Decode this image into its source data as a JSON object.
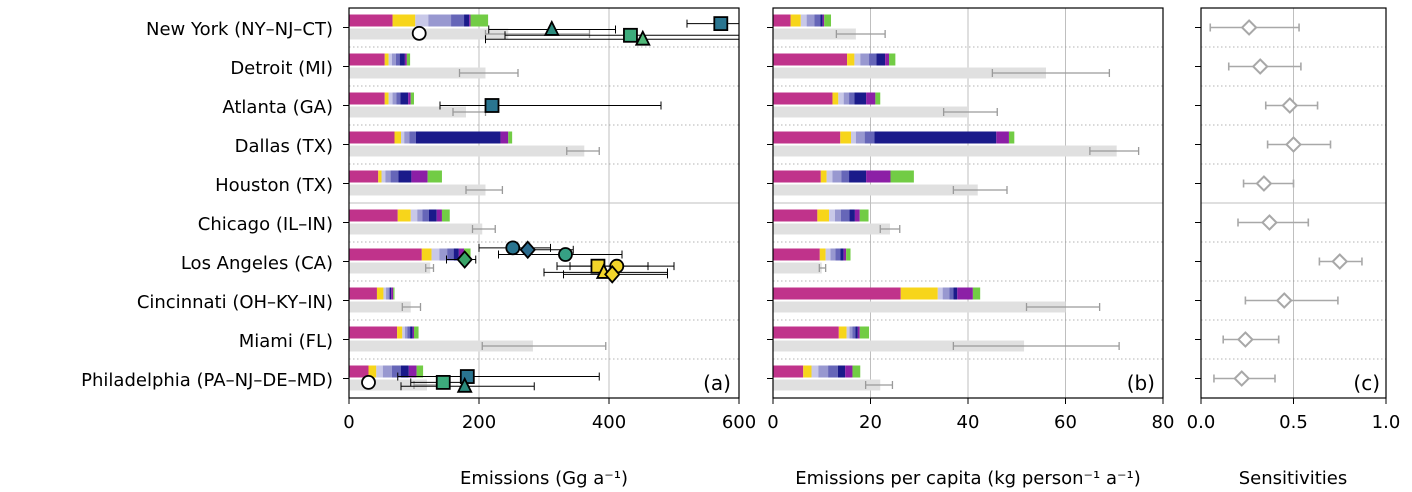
{
  "colors": {
    "sectors": [
      "#c0338b",
      "#f7d51b",
      "#c8c8e8",
      "#9898d0",
      "#6666b8",
      "#1a1a8a",
      "#8c1fa6",
      "#72cc45"
    ],
    "inventory": "#e0e0e0",
    "inventory_error": "#9a9a9a",
    "sensitivity_marker": "#a8a8a8",
    "grid": "#bfbfbf",
    "dotted_separator": "#9a9a9a"
  },
  "chart_data": [
    {
      "type": "bar",
      "panel_letter": "(a)",
      "xlabel": "Emissions (Gg a⁻¹)",
      "xlim": [
        0,
        600
      ],
      "xticks": [
        0,
        200,
        400,
        600
      ],
      "xtick_labels": [
        "0",
        "200",
        "400",
        "600"
      ],
      "categories": [
        "New York (NY–NJ–CT)",
        "Detroit (MI)",
        "Atlanta (GA)",
        "Dallas (TX)",
        "Houston (TX)",
        "Chicago (IL–IN)",
        "Los Angeles (CA)",
        "Cincinnati (OH–KY–IN)",
        "Miami (FL)",
        "Philadelphia (PA–NJ–DE–MD)"
      ],
      "stacked_sectors": [
        [
          67,
          35,
          20,
          35,
          20,
          8,
          2,
          27
        ],
        [
          55,
          6,
          5,
          6,
          6,
          8,
          3,
          5
        ],
        [
          55,
          6,
          6,
          6,
          6,
          12,
          4,
          5
        ],
        [
          70,
          10,
          5,
          8,
          10,
          130,
          12,
          6
        ],
        [
          45,
          5,
          6,
          8,
          12,
          20,
          25,
          22
        ],
        [
          75,
          20,
          10,
          8,
          10,
          12,
          8,
          12
        ],
        [
          112,
          15,
          12,
          12,
          10,
          8,
          8,
          10
        ],
        [
          43,
          10,
          4,
          4,
          2,
          2,
          3,
          2
        ],
        [
          74,
          8,
          4,
          4,
          4,
          4,
          2,
          7
        ],
        [
          30,
          12,
          10,
          14,
          14,
          12,
          12,
          10
        ]
      ],
      "inventory": [
        {
          "value": 245,
          "err": [
            210,
            370
          ]
        },
        {
          "value": 210,
          "err": [
            170,
            260
          ]
        },
        {
          "value": 180,
          "err": [
            160,
            210
          ]
        },
        {
          "value": 362,
          "err": [
            335,
            385
          ]
        },
        {
          "value": 210,
          "err": [
            180,
            236
          ]
        },
        {
          "value": 205,
          "err": [
            190,
            225
          ]
        },
        {
          "value": 125,
          "err": [
            118,
            130
          ]
        },
        {
          "value": 95,
          "err": [
            82,
            110
          ]
        },
        {
          "value": 283,
          "err": [
            205,
            395
          ]
        },
        {
          "value": 120,
          "err": [
            100,
            135
          ]
        }
      ],
      "estimates": [
        {
          "row": 0,
          "offset": -0.1,
          "marker": "square",
          "fill": "#2a7590",
          "x": 572,
          "xerr": [
            520,
            600
          ]
        },
        {
          "row": 0,
          "offset": 0.05,
          "marker": "triangle",
          "fill": "#2a8a7c",
          "x": 312,
          "xerr": [
            215,
            410
          ]
        },
        {
          "row": 0,
          "offset": 0.15,
          "marker": "circle",
          "fill": "#ffffff",
          "x": 108,
          "xerr": null
        },
        {
          "row": 0,
          "offset": 0.2,
          "marker": "square",
          "fill": "#3dab7c",
          "x": 433,
          "xerr": [
            240,
            600
          ]
        },
        {
          "row": 0,
          "offset": 0.3,
          "marker": "triangle",
          "fill": "#50b878",
          "x": 452,
          "xerr": [
            210,
            600
          ]
        },
        {
          "row": 2,
          "offset": 0,
          "marker": "square",
          "fill": "#2a7590",
          "x": 220,
          "xerr": [
            140,
            480
          ]
        },
        {
          "row": 6,
          "offset": -0.35,
          "marker": "circle",
          "fill": "#2a7590",
          "x": 252,
          "xerr": [
            200,
            310
          ]
        },
        {
          "row": 6,
          "offset": -0.3,
          "marker": "diamond",
          "fill": "#2a6a8c",
          "x": 275,
          "xerr": [
            250,
            345
          ]
        },
        {
          "row": 6,
          "offset": -0.18,
          "marker": "circle",
          "fill": "#36a084",
          "x": 333,
          "xerr": [
            230,
            420
          ]
        },
        {
          "row": 6,
          "offset": -0.05,
          "marker": "diamond",
          "fill": "#3aa468",
          "x": 178,
          "xerr": [
            150,
            195
          ]
        },
        {
          "row": 6,
          "offset": 0.12,
          "marker": "circle",
          "fill": "#f2d52a",
          "x": 412,
          "xerr": [
            340,
            500
          ]
        },
        {
          "row": 6,
          "offset": 0.12,
          "marker": "square",
          "fill": "#f2d52a",
          "x": 383,
          "xerr": [
            320,
            460
          ]
        },
        {
          "row": 6,
          "offset": 0.28,
          "marker": "triangle",
          "fill": "#f2d52a",
          "x": 392,
          "xerr": [
            300,
            490
          ]
        },
        {
          "row": 6,
          "offset": 0.33,
          "marker": "diamond",
          "fill": "#f2d52a",
          "x": 405,
          "xerr": [
            330,
            490
          ]
        },
        {
          "row": 9,
          "offset": -0.05,
          "marker": "square",
          "fill": "#2a7590",
          "x": 182,
          "xerr": [
            75,
            385
          ]
        },
        {
          "row": 9,
          "offset": 0.1,
          "marker": "circle",
          "fill": "#ffffff",
          "x": 30,
          "xerr": null
        },
        {
          "row": 9,
          "offset": 0.1,
          "marker": "square",
          "fill": "#3dab7c",
          "x": 145,
          "xerr": [
            95,
            175
          ]
        },
        {
          "row": 9,
          "offset": 0.2,
          "marker": "triangle",
          "fill": "#2a8a7c",
          "x": 178,
          "xerr": [
            80,
            285
          ]
        }
      ]
    },
    {
      "type": "bar",
      "panel_letter": "(b)",
      "xlabel": "Emissions per capita (kg person⁻¹ a⁻¹)",
      "xlim": [
        0,
        80
      ],
      "xticks": [
        0,
        20,
        40,
        60,
        80
      ],
      "xtick_labels": [
        "0",
        "20",
        "40",
        "60",
        "80"
      ],
      "stacked_sectors": [
        [
          3.6,
          2.1,
          1.2,
          1.6,
          1.2,
          0.5,
          0.3,
          1.4
        ],
        [
          15.2,
          1.5,
          1.2,
          1.8,
          1.5,
          1.8,
          0.8,
          1.3
        ],
        [
          12.2,
          1.2,
          1.1,
          1.1,
          1.1,
          2.4,
          1.9,
          1.0
        ],
        [
          13.8,
          2.2,
          1.0,
          1.8,
          2.0,
          25.0,
          2.6,
          1.1
        ],
        [
          9.8,
          1.2,
          1.2,
          1.8,
          1.6,
          3.5,
          5.0,
          4.8
        ],
        [
          9.1,
          2.4,
          1.2,
          1.2,
          1.8,
          1.1,
          1.0,
          1.8
        ],
        [
          9.6,
          1.2,
          1.0,
          1.0,
          1.0,
          0.7,
          0.5,
          0.9
        ],
        [
          26.2,
          7.6,
          1.0,
          1.4,
          0.8,
          0.8,
          3.2,
          1.5
        ],
        [
          13.5,
          1.6,
          0.6,
          0.6,
          0.6,
          0.5,
          0.4,
          1.9
        ],
        [
          6.2,
          1.7,
          1.4,
          2.0,
          2.0,
          1.5,
          1.5,
          1.6
        ]
      ],
      "inventory": [
        {
          "value": 17,
          "err": [
            13,
            23
          ]
        },
        {
          "value": 56,
          "err": [
            45,
            69
          ]
        },
        {
          "value": 40,
          "err": [
            35,
            46
          ]
        },
        {
          "value": 70.5,
          "err": [
            65,
            75
          ]
        },
        {
          "value": 42,
          "err": [
            37,
            48
          ]
        },
        {
          "value": 24,
          "err": [
            22,
            26
          ]
        },
        {
          "value": 10,
          "err": [
            9.5,
            10.8
          ]
        },
        {
          "value": 60,
          "err": [
            52,
            67
          ]
        },
        {
          "value": 51.5,
          "err": [
            37,
            71
          ]
        },
        {
          "value": 22,
          "err": [
            19,
            24.5
          ]
        }
      ]
    },
    {
      "type": "scatter",
      "panel_letter": "(c)",
      "xlabel": "Sensitivities",
      "xlim": [
        0,
        1
      ],
      "xticks": [
        0,
        0.5,
        1
      ],
      "xtick_labels": [
        "0.0",
        "0.5",
        "1.0"
      ],
      "points": [
        {
          "x": 0.26,
          "xerr": [
            0.05,
            0.53
          ]
        },
        {
          "x": 0.32,
          "xerr": [
            0.15,
            0.54
          ]
        },
        {
          "x": 0.48,
          "xerr": [
            0.35,
            0.63
          ]
        },
        {
          "x": 0.5,
          "xerr": [
            0.36,
            0.7
          ]
        },
        {
          "x": 0.34,
          "xerr": [
            0.23,
            0.5
          ]
        },
        {
          "x": 0.37,
          "xerr": [
            0.2,
            0.58
          ]
        },
        {
          "x": 0.75,
          "xerr": [
            0.64,
            0.87
          ]
        },
        {
          "x": 0.45,
          "xerr": [
            0.24,
            0.74
          ]
        },
        {
          "x": 0.24,
          "xerr": [
            0.12,
            0.42
          ]
        },
        {
          "x": 0.22,
          "xerr": [
            0.07,
            0.4
          ]
        }
      ]
    }
  ]
}
